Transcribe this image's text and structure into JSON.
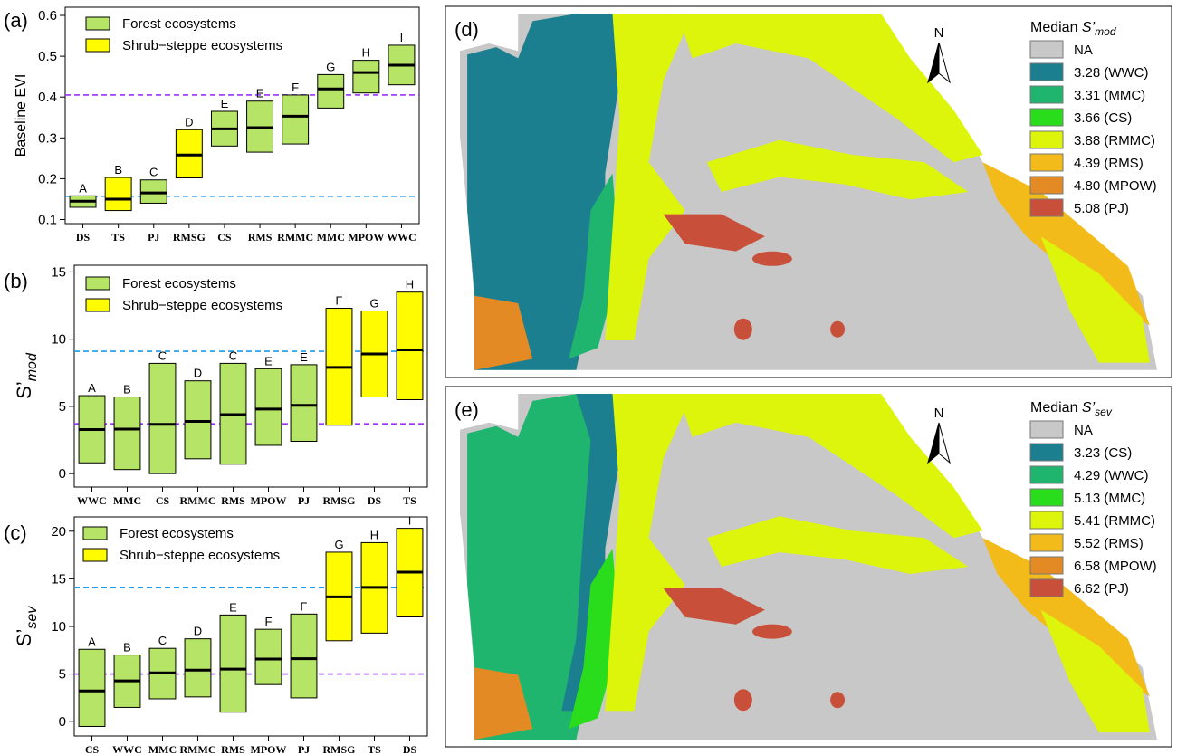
{
  "colors": {
    "forest": "#b5e467",
    "shrub": "#fffb00",
    "purple_line": "#9b30ff",
    "blue_line": "#1e9be6",
    "map_na": "#c8c8c8"
  },
  "chart_data": [
    {
      "panel_label": "(a)",
      "type": "boxplot",
      "ylabel": "Baseline EVI",
      "ylim": [
        0.09,
        0.62
      ],
      "yticks": [
        "0.1",
        "0.2",
        "0.3",
        "0.4",
        "0.5",
        "0.6"
      ],
      "legend": [
        "Forest ecosystems",
        "Shrub−steppe ecosystems"
      ],
      "hlines": {
        "purple": 0.405,
        "blue": 0.157
      },
      "boxes": [
        {
          "cat": "DS",
          "group": "forest",
          "low": 0.13,
          "med": 0.145,
          "high": 0.158,
          "letter": "A"
        },
        {
          "cat": "TS",
          "group": "shrub",
          "low": 0.122,
          "med": 0.15,
          "high": 0.203,
          "letter": "B"
        },
        {
          "cat": "PJ",
          "group": "forest",
          "low": 0.14,
          "med": 0.165,
          "high": 0.197,
          "letter": "C"
        },
        {
          "cat": "RMSG",
          "group": "shrub",
          "low": 0.202,
          "med": 0.258,
          "high": 0.32,
          "letter": "D"
        },
        {
          "cat": "CS",
          "group": "forest",
          "low": 0.28,
          "med": 0.322,
          "high": 0.365,
          "letter": "E"
        },
        {
          "cat": "RMS",
          "group": "forest",
          "low": 0.265,
          "med": 0.325,
          "high": 0.39,
          "letter": "E"
        },
        {
          "cat": "RMMC",
          "group": "forest",
          "low": 0.285,
          "med": 0.353,
          "high": 0.405,
          "letter": "F"
        },
        {
          "cat": "MMC",
          "group": "forest",
          "low": 0.373,
          "med": 0.42,
          "high": 0.455,
          "letter": "G"
        },
        {
          "cat": "MPOW",
          "group": "forest",
          "low": 0.41,
          "med": 0.46,
          "high": 0.49,
          "letter": "H"
        },
        {
          "cat": "WWC",
          "group": "forest",
          "low": 0.43,
          "med": 0.478,
          "high": 0.527,
          "letter": "I"
        }
      ]
    },
    {
      "panel_label": "(b)",
      "type": "boxplot",
      "ylabel": "S’",
      "ylabel_sub": "mod",
      "ylim": [
        -1,
        15.5
      ],
      "yticks": [
        "0",
        "5",
        "10",
        "15"
      ],
      "legend": [
        "Forest ecosystems",
        "Shrub−steppe ecosystems"
      ],
      "hlines": {
        "purple": 3.7,
        "blue": 9.1
      },
      "boxes": [
        {
          "cat": "WWC",
          "group": "forest",
          "low": 0.8,
          "med": 3.28,
          "high": 5.8,
          "letter": "A"
        },
        {
          "cat": "MMC",
          "group": "forest",
          "low": 0.3,
          "med": 3.31,
          "high": 5.7,
          "letter": "B"
        },
        {
          "cat": "CS",
          "group": "forest",
          "low": 0.0,
          "med": 3.66,
          "high": 8.2,
          "letter": "C"
        },
        {
          "cat": "RMMC",
          "group": "forest",
          "low": 1.1,
          "med": 3.88,
          "high": 6.9,
          "letter": "D"
        },
        {
          "cat": "RMS",
          "group": "forest",
          "low": 0.7,
          "med": 4.39,
          "high": 8.2,
          "letter": "C"
        },
        {
          "cat": "MPOW",
          "group": "forest",
          "low": 2.1,
          "med": 4.8,
          "high": 7.8,
          "letter": "E"
        },
        {
          "cat": "PJ",
          "group": "forest",
          "low": 2.4,
          "med": 5.08,
          "high": 8.1,
          "letter": "E"
        },
        {
          "cat": "RMSG",
          "group": "shrub",
          "low": 3.6,
          "med": 7.9,
          "high": 12.3,
          "letter": "F"
        },
        {
          "cat": "DS",
          "group": "shrub",
          "low": 5.7,
          "med": 8.9,
          "high": 12.1,
          "letter": "G"
        },
        {
          "cat": "TS",
          "group": "shrub",
          "low": 5.5,
          "med": 9.2,
          "high": 13.5,
          "letter": "H"
        }
      ]
    },
    {
      "panel_label": "(c)",
      "type": "boxplot",
      "ylabel": "S’",
      "ylabel_sub": "sev",
      "ylim": [
        -1.5,
        21.5
      ],
      "yticks": [
        "0",
        "5",
        "10",
        "15",
        "20"
      ],
      "legend": [
        "Forest ecosystems",
        "Shrub−steppe ecosystems"
      ],
      "hlines": {
        "purple": 5.0,
        "blue": 14.1
      },
      "boxes": [
        {
          "cat": "CS",
          "group": "forest",
          "low": -0.5,
          "med": 3.23,
          "high": 7.6,
          "letter": "A"
        },
        {
          "cat": "WWC",
          "group": "forest",
          "low": 1.5,
          "med": 4.29,
          "high": 7.0,
          "letter": "B"
        },
        {
          "cat": "MMC",
          "group": "forest",
          "low": 2.4,
          "med": 5.13,
          "high": 7.7,
          "letter": "C"
        },
        {
          "cat": "RMMC",
          "group": "forest",
          "low": 2.6,
          "med": 5.41,
          "high": 8.7,
          "letter": "D"
        },
        {
          "cat": "RMS",
          "group": "forest",
          "low": 1.0,
          "med": 5.52,
          "high": 11.2,
          "letter": "E"
        },
        {
          "cat": "MPOW",
          "group": "forest",
          "low": 3.9,
          "med": 6.58,
          "high": 9.7,
          "letter": "F"
        },
        {
          "cat": "PJ",
          "group": "forest",
          "low": 2.5,
          "med": 6.62,
          "high": 11.3,
          "letter": "F"
        },
        {
          "cat": "RMSG",
          "group": "shrub",
          "low": 8.5,
          "med": 13.1,
          "high": 17.8,
          "letter": "G"
        },
        {
          "cat": "TS",
          "group": "shrub",
          "low": 9.3,
          "med": 14.1,
          "high": 18.8,
          "letter": "H"
        },
        {
          "cat": "DS",
          "group": "shrub",
          "low": 11.0,
          "med": 15.7,
          "high": 20.3,
          "letter": "I"
        }
      ]
    }
  ],
  "maps": [
    {
      "panel_label": "(d)",
      "north": "N",
      "legend_title": "Median ",
      "legend_title_var": "S’",
      "legend_title_sub": "mod",
      "legend": [
        {
          "label": "NA",
          "color": "#c8c8c8"
        },
        {
          "label": "3.28 (WWC)",
          "color": "#1b7f8f"
        },
        {
          "label": "3.31 (MMC)",
          "color": "#1fb56f"
        },
        {
          "label": "3.66 (CS)",
          "color": "#29dd1c"
        },
        {
          "label": "3.88 (RMMC)",
          "color": "#ddf50a"
        },
        {
          "label": "4.39 (RMS)",
          "color": "#f2bb1a"
        },
        {
          "label": "4.80 (MPOW)",
          "color": "#e38a25"
        },
        {
          "label": "5.08 (PJ)",
          "color": "#c8503a"
        }
      ]
    },
    {
      "panel_label": "(e)",
      "north": "N",
      "legend_title": "Median ",
      "legend_title_var": "S’",
      "legend_title_sub": "sev",
      "legend": [
        {
          "label": "NA",
          "color": "#c8c8c8"
        },
        {
          "label": "3.23 (CS)",
          "color": "#1b7f8f"
        },
        {
          "label": "4.29 (WWC)",
          "color": "#1fb56f"
        },
        {
          "label": "5.13 (MMC)",
          "color": "#29dd1c"
        },
        {
          "label": "5.41 (RMMC)",
          "color": "#ddf50a"
        },
        {
          "label": "5.52 (RMS)",
          "color": "#f2bb1a"
        },
        {
          "label": "6.58 (MPOW)",
          "color": "#e38a25"
        },
        {
          "label": "6.62 (PJ)",
          "color": "#c8503a"
        }
      ]
    }
  ]
}
